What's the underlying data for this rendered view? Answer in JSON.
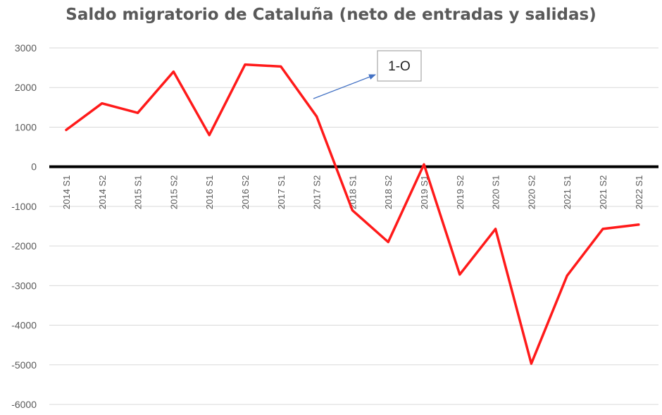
{
  "chart_data": {
    "type": "line",
    "title": "Saldo migratorio de Cataluña (neto de entradas y salidas)",
    "xlabel": "",
    "ylabel": "",
    "categories": [
      "2014 S1",
      "2014 S2",
      "2015 S1",
      "2015 S2",
      "2016 S1",
      "2016 S2",
      "2017 S1",
      "2017 S2",
      "2018 S1",
      "2018 S2",
      "2019 S1",
      "2019 S2",
      "2020 S1",
      "2020 S2",
      "2021 S1",
      "2021 S2",
      "2022 S1"
    ],
    "series": [
      {
        "values": [
          930,
          1600,
          1360,
          2400,
          800,
          2580,
          2530,
          1270,
          -1100,
          -1900,
          60,
          -2720,
          -1570,
          -4970,
          -2750,
          -1570,
          -1460
        ]
      }
    ],
    "ylim": [
      -6000,
      3000
    ],
    "yticks": [
      3000,
      2000,
      1000,
      0,
      -1000,
      -2000,
      -3000,
      -4000,
      -5000,
      -6000
    ],
    "grid": true,
    "line_color": "#ff1a1a",
    "zero_line_color": "#000000",
    "annotation": {
      "text": "1-O",
      "arrow_color": "#4472c4",
      "points_to_between": [
        "2017 S1",
        "2017 S2"
      ]
    }
  }
}
